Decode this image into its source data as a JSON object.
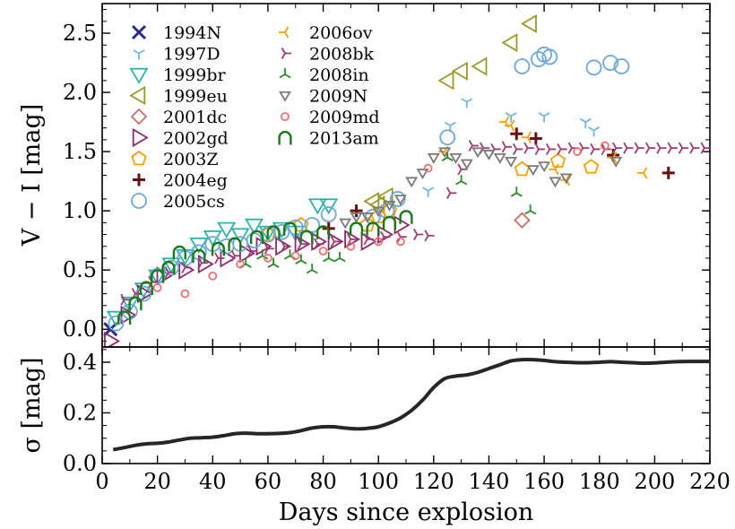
{
  "figure": {
    "xlabel": "Days since explosion",
    "top_ylabel": "V − I  [mag]",
    "bottom_ylabel": "σ [mag]"
  },
  "chart_data": [
    {
      "type": "scatter",
      "ylabel": "V − I [mag]",
      "xlabel": "Days since explosion",
      "xlim": [
        0,
        220
      ],
      "ylim": [
        -0.15,
        2.75
      ],
      "x_ticks": [
        0,
        20,
        40,
        60,
        80,
        100,
        120,
        140,
        160,
        180,
        200,
        220
      ],
      "y_ticks": [
        0.0,
        0.5,
        1.0,
        1.5,
        2.0,
        2.5
      ],
      "y_tick_labels": [
        "0.0",
        "0.5",
        "1.0",
        "1.5",
        "2.0",
        "2.5"
      ],
      "legend_position": "top-left",
      "series": [
        {
          "name": "1994N",
          "marker": "x",
          "color": "#2b2a8a",
          "points": [
            [
              3,
              0.0
            ]
          ]
        },
        {
          "name": "1997D",
          "marker": "tri_down",
          "color": "#6eb8e0",
          "points": [
            [
              118,
              1.17
            ],
            [
              126,
              1.72
            ],
            [
              132,
              1.92
            ],
            [
              148,
              1.8
            ],
            [
              160,
              1.8
            ],
            [
              175,
              1.75
            ],
            [
              178,
              1.68
            ]
          ]
        },
        {
          "name": "1999br",
          "marker": "triangle_down",
          "color": "#2bb5a8",
          "points": [
            [
              5,
              0.1
            ],
            [
              10,
              0.22
            ],
            [
              15,
              0.34
            ],
            [
              20,
              0.45
            ],
            [
              25,
              0.55
            ],
            [
              30,
              0.62
            ],
            [
              35,
              0.72
            ],
            [
              40,
              0.78
            ],
            [
              45,
              0.85
            ],
            [
              50,
              0.8
            ],
            [
              55,
              0.88
            ],
            [
              60,
              0.82
            ],
            [
              65,
              0.85
            ],
            [
              70,
              0.82
            ],
            [
              78,
              1.05
            ],
            [
              82,
              1.05
            ]
          ]
        },
        {
          "name": "1999eu",
          "marker": "triangle_left",
          "color": "#9a9a2a",
          "points": [
            [
              98,
              1.08
            ],
            [
              100,
              1.05
            ],
            [
              103,
              1.12
            ],
            [
              125,
              2.1
            ],
            [
              130,
              2.18
            ],
            [
              137,
              2.22
            ],
            [
              148,
              2.42
            ],
            [
              155,
              2.58
            ]
          ]
        },
        {
          "name": "2001dc",
          "marker": "diamond",
          "color": "#c87070",
          "points": [
            [
              152,
              0.92
            ]
          ]
        },
        {
          "name": "2002gd",
          "marker": "triangle_right",
          "color": "#8a2a6a",
          "points": [
            [
              3,
              -0.1
            ],
            [
              9,
              0.12
            ],
            [
              15,
              0.3
            ],
            [
              22,
              0.45
            ],
            [
              30,
              0.5
            ],
            [
              37,
              0.55
            ],
            [
              45,
              0.6
            ],
            [
              52,
              0.64
            ],
            [
              58,
              0.7
            ],
            [
              65,
              0.7
            ],
            [
              72,
              0.72
            ],
            [
              78,
              0.74
            ],
            [
              84,
              0.74
            ],
            [
              90,
              0.76
            ],
            [
              96,
              0.74
            ],
            [
              102,
              0.8
            ],
            [
              108,
              0.88
            ]
          ]
        },
        {
          "name": "2003Z",
          "marker": "pentagon",
          "color": "#f0a000",
          "points": [
            [
              60,
              0.8
            ],
            [
              72,
              0.88
            ],
            [
              96,
              0.88
            ],
            [
              100,
              0.95
            ],
            [
              104,
              1.0
            ],
            [
              152,
              1.35
            ],
            [
              165,
              1.42
            ],
            [
              177,
              1.37
            ]
          ]
        },
        {
          "name": "2004eg",
          "marker": "plus",
          "color": "#6a1010",
          "points": [
            [
              82,
              0.85
            ],
            [
              92,
              1.0
            ],
            [
              150,
              1.65
            ],
            [
              157,
              1.61
            ],
            [
              185,
              1.47
            ],
            [
              205,
              1.32
            ]
          ]
        },
        {
          "name": "2005cs",
          "marker": "circle",
          "color": "#6ea8d8",
          "points": [
            [
              5,
              0.05
            ],
            [
              10,
              0.15
            ],
            [
              15,
              0.3
            ],
            [
              20,
              0.45
            ],
            [
              25,
              0.52
            ],
            [
              30,
              0.6
            ],
            [
              35,
              0.65
            ],
            [
              40,
              0.72
            ],
            [
              45,
              0.7
            ],
            [
              50,
              0.72
            ],
            [
              55,
              0.75
            ],
            [
              60,
              0.8
            ],
            [
              65,
              0.82
            ],
            [
              70,
              0.86
            ],
            [
              76,
              0.88
            ],
            [
              82,
              0.97
            ],
            [
              98,
              0.95
            ],
            [
              103,
              1.0
            ],
            [
              107,
              1.1
            ],
            [
              125,
              1.62
            ],
            [
              152,
              2.22
            ],
            [
              158,
              2.28
            ],
            [
              160,
              2.32
            ],
            [
              162,
              2.3
            ],
            [
              178,
              2.21
            ],
            [
              184,
              2.25
            ],
            [
              188,
              2.22
            ]
          ]
        },
        {
          "name": "2006ov",
          "marker": "tri_left",
          "color": "#f0a000",
          "points": [
            [
              124,
              1.5
            ],
            [
              146,
              1.75
            ],
            [
              148,
              1.72
            ],
            [
              154,
              1.62
            ],
            [
              164,
              1.35
            ],
            [
              168,
              1.26
            ],
            [
              185,
              1.45
            ],
            [
              196,
              1.32
            ]
          ]
        },
        {
          "name": "2008bk",
          "marker": "tri_right",
          "color": "#a03a70",
          "points": [
            [
              8,
              0.25
            ],
            [
              12,
              0.3
            ],
            [
              18,
              0.4
            ],
            [
              24,
              0.48
            ],
            [
              30,
              0.52
            ],
            [
              36,
              0.56
            ],
            [
              42,
              0.6
            ],
            [
              48,
              0.62
            ],
            [
              54,
              0.66
            ],
            [
              60,
              0.68
            ],
            [
              66,
              0.7
            ],
            [
              72,
              0.72
            ],
            [
              78,
              0.72
            ],
            [
              84,
              0.74
            ],
            [
              90,
              0.76
            ],
            [
              96,
              0.76
            ],
            [
              102,
              0.78
            ],
            [
              108,
              0.78
            ],
            [
              114,
              0.8
            ],
            [
              118,
              0.79
            ],
            [
              126,
              1.15
            ],
            [
              130,
              1.35
            ],
            [
              134,
              1.55
            ],
            [
              138,
              1.53
            ],
            [
              142,
              1.52
            ],
            [
              146,
              1.54
            ],
            [
              150,
              1.52
            ],
            [
              154,
              1.53
            ],
            [
              158,
              1.52
            ],
            [
              162,
              1.52
            ],
            [
              166,
              1.52
            ],
            [
              170,
              1.53
            ],
            [
              174,
              1.53
            ],
            [
              178,
              1.52
            ],
            [
              182,
              1.52
            ],
            [
              186,
              1.53
            ],
            [
              190,
              1.53
            ],
            [
              194,
              1.53
            ],
            [
              198,
              1.53
            ],
            [
              202,
              1.53
            ],
            [
              206,
              1.53
            ],
            [
              210,
              1.53
            ],
            [
              214,
              1.53
            ],
            [
              218,
              1.53
            ]
          ]
        },
        {
          "name": "2008in",
          "marker": "tri_up",
          "color": "#2a8a2a",
          "points": [
            [
              52,
              0.55
            ],
            [
              58,
              0.62
            ],
            [
              62,
              0.55
            ],
            [
              68,
              0.62
            ],
            [
              72,
              0.58
            ],
            [
              76,
              0.5
            ],
            [
              82,
              0.6
            ],
            [
              86,
              0.6
            ],
            [
              125,
              1.45
            ],
            [
              130,
              1.25
            ],
            [
              150,
              1.15
            ],
            [
              155,
              1.0
            ]
          ]
        },
        {
          "name": "2009N",
          "marker": "tri_down_small",
          "color": "#7a7a7a",
          "points": [
            [
              88,
              0.9
            ],
            [
              92,
              0.95
            ],
            [
              96,
              0.95
            ],
            [
              100,
              1.0
            ],
            [
              104,
              1.05
            ],
            [
              108,
              1.1
            ],
            [
              112,
              1.25
            ],
            [
              116,
              1.32
            ],
            [
              120,
              1.45
            ],
            [
              124,
              1.5
            ],
            [
              128,
              1.45
            ],
            [
              132,
              1.4
            ],
            [
              136,
              1.5
            ],
            [
              140,
              1.48
            ],
            [
              144,
              1.45
            ],
            [
              148,
              1.42
            ],
            [
              156,
              1.35
            ],
            [
              160,
              1.38
            ],
            [
              164,
              1.25
            ],
            [
              168,
              1.28
            ],
            [
              186,
              1.42
            ]
          ]
        },
        {
          "name": "2009md",
          "marker": "circle_small",
          "color": "#ee7070",
          "points": [
            [
              20,
              0.35
            ],
            [
              30,
              0.3
            ],
            [
              40,
              0.45
            ],
            [
              50,
              0.55
            ],
            [
              60,
              0.6
            ],
            [
              70,
              0.62
            ],
            [
              80,
              0.66
            ],
            [
              90,
              0.7
            ],
            [
              100,
              0.74
            ],
            [
              108,
              0.74
            ],
            [
              118,
              1.36
            ],
            [
              172,
              1.5
            ],
            [
              182,
              1.55
            ]
          ]
        },
        {
          "name": "2013am",
          "marker": "arch",
          "color": "#1a7a1a",
          "points": [
            [
              8,
              0.1
            ],
            [
              12,
              0.22
            ],
            [
              16,
              0.35
            ],
            [
              20,
              0.45
            ],
            [
              24,
              0.52
            ],
            [
              28,
              0.65
            ],
            [
              35,
              0.62
            ],
            [
              42,
              0.68
            ],
            [
              48,
              0.72
            ],
            [
              56,
              0.78
            ],
            [
              62,
              0.82
            ],
            [
              68,
              0.85
            ],
            [
              74,
              0.78
            ],
            [
              80,
              0.82
            ],
            [
              92,
              0.85
            ],
            [
              98,
              0.85
            ],
            [
              104,
              0.9
            ],
            [
              110,
              0.95
            ]
          ]
        }
      ]
    },
    {
      "type": "line",
      "ylabel": "σ [mag]",
      "xlabel": "Days since explosion",
      "xlim": [
        0,
        220
      ],
      "ylim": [
        0.0,
        0.46
      ],
      "x_ticks": [
        0,
        20,
        40,
        60,
        80,
        100,
        120,
        140,
        160,
        180,
        200,
        220
      ],
      "y_ticks": [
        0.0,
        0.2,
        0.4
      ],
      "y_tick_labels": [
        "0.0",
        "0.2",
        "0.4"
      ],
      "series": [
        {
          "color": "#262626",
          "x": [
            4,
            8,
            12,
            16,
            20,
            24,
            28,
            32,
            36,
            40,
            44,
            48,
            52,
            56,
            60,
            64,
            68,
            72,
            76,
            80,
            84,
            88,
            92,
            96,
            100,
            104,
            108,
            112,
            116,
            120,
            124,
            128,
            132,
            136,
            140,
            144,
            148,
            152,
            156,
            160,
            164,
            168,
            172,
            176,
            180,
            184,
            188,
            192,
            196,
            200,
            204,
            208,
            212,
            216,
            220
          ],
          "y": [
            0.055,
            0.063,
            0.072,
            0.078,
            0.08,
            0.085,
            0.093,
            0.1,
            0.102,
            0.104,
            0.11,
            0.118,
            0.12,
            0.118,
            0.118,
            0.119,
            0.122,
            0.13,
            0.14,
            0.145,
            0.145,
            0.14,
            0.137,
            0.139,
            0.145,
            0.16,
            0.18,
            0.21,
            0.25,
            0.3,
            0.335,
            0.345,
            0.35,
            0.36,
            0.375,
            0.39,
            0.405,
            0.41,
            0.41,
            0.407,
            0.402,
            0.4,
            0.398,
            0.398,
            0.4,
            0.402,
            0.4,
            0.398,
            0.396,
            0.397,
            0.4,
            0.402,
            0.403,
            0.403,
            0.403
          ]
        }
      ]
    }
  ]
}
